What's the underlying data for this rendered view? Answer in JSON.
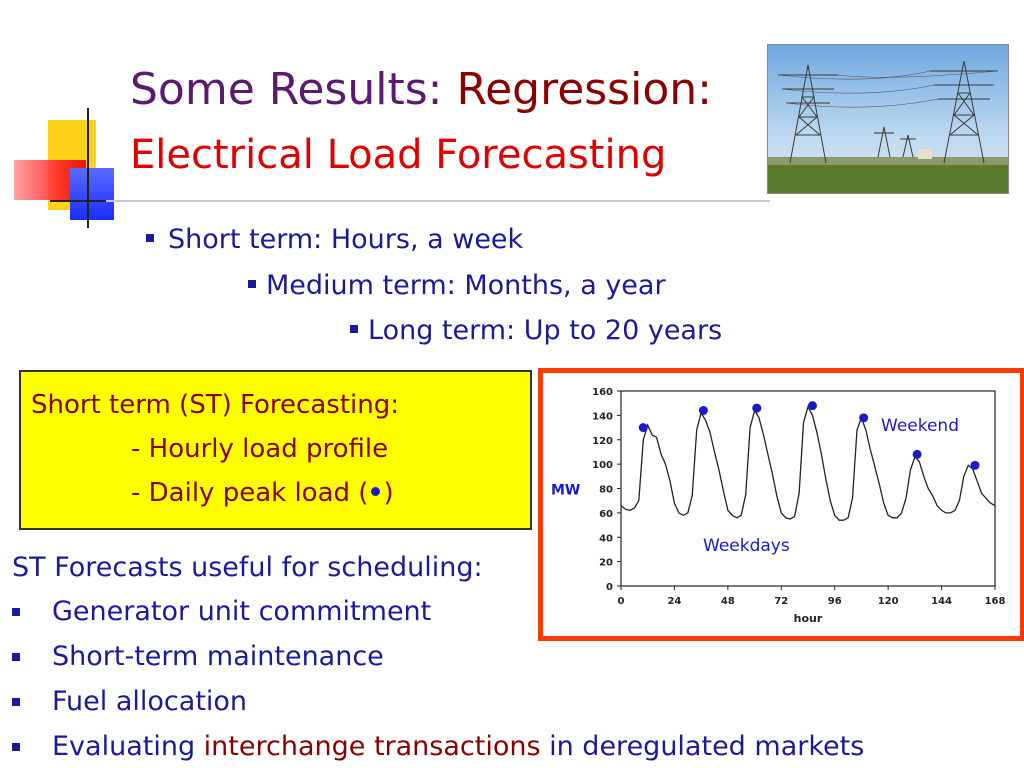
{
  "title": {
    "part1": "Some Results:",
    "part2": "Regression:",
    "line2": "Electrical Load Forecasting"
  },
  "photo": {
    "icon": "power-transmission-towers"
  },
  "terms": [
    "Short term: Hours, a week",
    "Medium term: Months, a year",
    "Long term: Up to 20 years"
  ],
  "st_box": {
    "heading": "Short term (ST) Forecasting:",
    "item1": "- Hourly load profile",
    "item2_prefix": "- Daily peak load (",
    "item2_suffix": ")"
  },
  "uses": {
    "heading": "ST Forecasts useful for scheduling:",
    "items": [
      "Generator unit commitment",
      "Short-term maintenance",
      "Fuel allocation"
    ],
    "last": {
      "pre": "Evaluating ",
      "highlight": "interchange transactions",
      "post": " in deregulated markets"
    }
  },
  "colors": {
    "title_purple": "#5a1a6e",
    "title_red": "#e00000",
    "dark_red": "#8b0000",
    "bullet_blue": "#1a1a9a",
    "frame_orange": "#ff3a00",
    "box_yellow": "#ffff00"
  },
  "chart_data": {
    "type": "line",
    "xlabel": "hour",
    "ylabel": "MW",
    "xlim": [
      0,
      168
    ],
    "ylim": [
      0,
      160
    ],
    "x_ticks": [
      "0",
      "24",
      "48",
      "72",
      "96",
      "120",
      "144",
      "168"
    ],
    "y_ticks": [
      "0",
      "20",
      "40",
      "60",
      "80",
      "100",
      "120",
      "140",
      "160"
    ],
    "annotations": [
      "Weekend",
      "Weekdays"
    ],
    "series": [
      {
        "x": [
          0,
          2,
          4,
          6,
          8,
          10,
          12,
          14,
          16,
          18,
          20,
          22,
          24,
          26,
          28,
          30,
          32,
          34,
          36,
          38,
          40,
          42,
          44,
          46,
          48,
          50,
          52,
          54,
          56,
          58,
          60,
          62,
          64,
          66,
          68,
          70,
          72,
          74,
          76,
          78,
          80,
          82,
          84,
          86,
          88,
          90,
          92,
          94,
          96,
          98,
          100,
          102,
          104,
          106,
          108,
          110,
          112,
          114,
          116,
          118,
          120,
          122,
          124,
          126,
          128,
          130,
          132,
          134,
          136,
          138,
          140,
          142,
          144,
          146,
          148,
          150,
          152,
          154,
          156,
          158,
          160,
          162,
          164,
          166,
          168
        ],
        "values": [
          66,
          63,
          62,
          64,
          70,
          120,
          132,
          124,
          122,
          108,
          100,
          86,
          68,
          60,
          58,
          60,
          74,
          128,
          142,
          136,
          126,
          110,
          95,
          78,
          62,
          58,
          56,
          58,
          75,
          130,
          144,
          138,
          124,
          108,
          92,
          74,
          60,
          56,
          55,
          57,
          76,
          134,
          147,
          140,
          126,
          108,
          88,
          70,
          58,
          54,
          54,
          56,
          72,
          128,
          138,
          128,
          112,
          98,
          84,
          68,
          58,
          56,
          56,
          60,
          72,
          95,
          106,
          102,
          90,
          80,
          74,
          66,
          62,
          60,
          60,
          62,
          70,
          90,
          99,
          96,
          86,
          76,
          72,
          68,
          66
        ]
      }
    ],
    "peaks": {
      "x": [
        10,
        37,
        61,
        86,
        109,
        133,
        159
      ],
      "values": [
        130,
        144,
        146,
        148,
        138,
        108,
        99
      ]
    }
  }
}
